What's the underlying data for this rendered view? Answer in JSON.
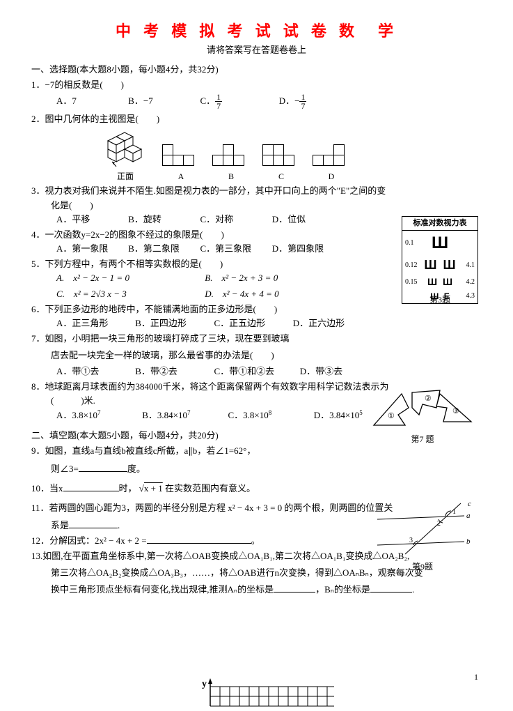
{
  "title": "中 考 模 拟 考 试 试 卷 数　学",
  "subtitle": "请将答案写在答题卷卷上",
  "sec1": "一、选择题(本大题8小题，每小题4分，共32分)",
  "q1": "1．−7的相反数是(　　)",
  "q1A": "A．7",
  "q1B": "B．−7",
  "q1C_pre": "C．",
  "q1D_pre": "D．−",
  "frac1n": "1",
  "frac1d": "7",
  "q2": "2．图中几何体的主视图是(　　)",
  "q2front": "正面",
  "q2A": "A",
  "q2B": "B",
  "q2C": "C",
  "q2D": "D",
  "q3a": "3．视力表对我们来说并不陌生.如图是视力表的一部分，其中开口向上的两个\"E\"之间的变",
  "q3b": "化是(　　)",
  "q3A": "A．平移",
  "q3B": "B．旋转",
  "q3C": "C．对称",
  "q3D": "D．位似",
  "q4": "4．一次函数y=2x−2的图象不经过的象限是(　　)",
  "q4A": "A．第一象限",
  "q4B": "B．第二象限",
  "q4C": "C．第三象限",
  "q4D": "D．第四象限",
  "q5": "5．下列方程中，有两个不相等实数根的是(　　)",
  "q5A": "A.　x² − 2x − 1 = 0",
  "q5B": "B.　x² − 2x + 3 = 0",
  "q5C": "C.　x² = 2√3 x − 3",
  "q5D": "D.　x² − 4x + 4 = 0",
  "q6": "6．下列正多边形的地砖中，不能铺满地面的正多边形是(　　)",
  "q6A": "A．正三角形",
  "q6B": "B．正四边形",
  "q6C": "C．正五边形",
  "q6D": "D．正六边形",
  "q7a": "7．如图，小明把一块三角形的玻璃打碎成了三块，现在要到玻璃",
  "q7b": "店去配一块完全一样的玻璃，那么最省事的办法是(　　)",
  "q7A": "A．带①去",
  "q7B": "B．带②去",
  "q7C": "C．带①和②去",
  "q7D": "D．带③去",
  "q7cap": "第7 题",
  "q8a": "8．地球距离月球表面约为384000千米，将这个距离保留两个有效数字用科学记数法表示为",
  "q8b": "(　　　)米.",
  "q8A_pre": "A．3.8×10",
  "q8A_sup": "7",
  "q8B_pre": "B．3.84×10",
  "q8B_sup": "7",
  "q8C_pre": "C．3.8×10",
  "q8C_sup": "8",
  "q8D_pre": "D．3.84×10",
  "q8D_sup": "5",
  "sec2": "二、填空题(本大题5小题，每小题4分，共20分)",
  "q9a": "9．如图，直线a与直线b被直线c所截，a∥b，若∠1=62°，",
  "q9b": "则∠3=",
  "q9c": "度。",
  "q9cap": "第9题",
  "q10a": "10．当x",
  "q10b": "时，",
  "q10sqrt": "x + 1",
  "q10c": "在实数范围内有意义。",
  "q11a": "11．若两圆的圆心距为3，两圆的半径分别是方程 x² − 4x + 3 = 0 的两个根，则两圆的位置关",
  "q11b": "系是",
  "q11c": ".",
  "q12a": "12．分解因式：2x² − 4x + 2 =",
  "q12b": "。",
  "q13a": "13.如图,在平面直角坐标系中,第一次将△OAB变换成△OA₁B₁,第二次将△OA₁B₁变换成△OA₂B₂,",
  "q13b": "第三次将△OA₂B₂变换成△OA₃B₃，……，将△OAB进行n次变换，得到△OAₙBₙ，观察每次变",
  "q13c1": "换中三角形顶点坐标有何变化,找出规律,推测Aₙ的坐标是",
  "q13c2": "，Bₙ的坐标是",
  "q13c3": ".",
  "yaxis": "y",
  "pagenum": "1",
  "eye": {
    "title": "标准对数视力表",
    "rows": [
      {
        "l": "0.1",
        "g": "Ш",
        "size": 24,
        "r": ""
      },
      {
        "l": "0.12",
        "g": "Ш Ш",
        "size": 18,
        "r": "4.1"
      },
      {
        "l": "0.15",
        "g": "Ш Ш",
        "size": 14,
        "r": "4.2"
      },
      {
        "l": "",
        "g": "Ш E",
        "size": 12,
        "r": "4.3"
      }
    ],
    "caption": "第3题"
  }
}
